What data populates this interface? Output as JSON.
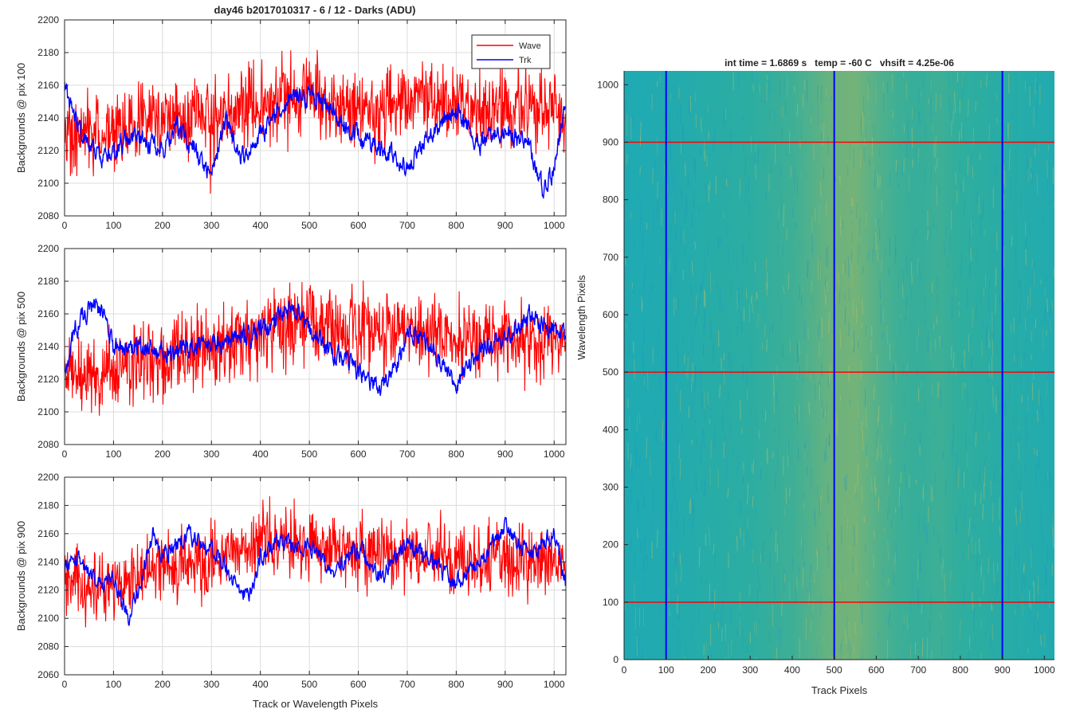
{
  "figure": {
    "title": "day46 b2017010317 - 6 / 12 - Darks (ADU)",
    "colors": {
      "wave": "#ff0000",
      "trk": "#0000ff",
      "axis": "#262626",
      "grid": "#dcdcdc"
    }
  },
  "chart_data": [
    {
      "type": "line",
      "ylabel": "Backgrounds @ pix 100",
      "xlabel": "",
      "xlim": [
        0,
        1024
      ],
      "ylim": [
        2080,
        2200
      ],
      "xticks": [
        0,
        100,
        200,
        300,
        400,
        500,
        600,
        700,
        800,
        900,
        1000
      ],
      "yticks": [
        2080,
        2100,
        2120,
        2140,
        2160,
        2180,
        2200
      ],
      "grid": true,
      "legend": {
        "placement": "top-right",
        "entries": [
          "Wave",
          "Trk"
        ]
      },
      "series": [
        {
          "name": "Wave",
          "color": "#ff0000",
          "x": [
            0,
            50,
            100,
            150,
            200,
            250,
            300,
            350,
            400,
            450,
            500,
            550,
            600,
            650,
            700,
            750,
            800,
            850,
            900,
            950,
            1000,
            1023
          ],
          "values": [
            2130,
            2132,
            2130,
            2138,
            2140,
            2140,
            2142,
            2143,
            2148,
            2150,
            2156,
            2150,
            2146,
            2145,
            2150,
            2148,
            2147,
            2145,
            2148,
            2147,
            2144,
            2140
          ]
        },
        {
          "name": "Trk",
          "color": "#0000ff",
          "x": [
            0,
            20,
            40,
            60,
            80,
            100,
            120,
            150,
            200,
            230,
            260,
            300,
            330,
            360,
            400,
            450,
            500,
            550,
            600,
            650,
            700,
            750,
            800,
            850,
            900,
            950,
            980,
            1000,
            1023
          ],
          "values": [
            2160,
            2140,
            2130,
            2120,
            2115,
            2118,
            2125,
            2130,
            2120,
            2135,
            2125,
            2105,
            2140,
            2115,
            2130,
            2150,
            2155,
            2145,
            2130,
            2120,
            2110,
            2130,
            2145,
            2125,
            2135,
            2120,
            2095,
            2110,
            2150
          ]
        }
      ]
    },
    {
      "type": "line",
      "ylabel": "Backgrounds @ pix 500",
      "xlabel": "",
      "xlim": [
        0,
        1024
      ],
      "ylim": [
        2080,
        2200
      ],
      "xticks": [
        0,
        100,
        200,
        300,
        400,
        500,
        600,
        700,
        800,
        900,
        1000
      ],
      "yticks": [
        2080,
        2100,
        2120,
        2140,
        2160,
        2180,
        2200
      ],
      "grid": true,
      "series": [
        {
          "name": "Wave",
          "color": "#ff0000",
          "x": [
            0,
            50,
            100,
            150,
            200,
            250,
            300,
            350,
            400,
            450,
            500,
            550,
            600,
            650,
            700,
            750,
            800,
            850,
            900,
            950,
            1000,
            1023
          ],
          "values": [
            2120,
            2128,
            2125,
            2130,
            2133,
            2135,
            2140,
            2145,
            2148,
            2152,
            2153,
            2150,
            2148,
            2148,
            2150,
            2147,
            2145,
            2144,
            2145,
            2144,
            2143,
            2142
          ]
        },
        {
          "name": "Trk",
          "color": "#0000ff",
          "x": [
            0,
            20,
            40,
            60,
            80,
            100,
            130,
            160,
            200,
            250,
            300,
            350,
            400,
            450,
            480,
            500,
            550,
            600,
            650,
            680,
            700,
            750,
            800,
            850,
            900,
            950,
            1000,
            1023
          ],
          "values": [
            2125,
            2150,
            2160,
            2167,
            2160,
            2140,
            2138,
            2140,
            2135,
            2140,
            2140,
            2145,
            2150,
            2160,
            2158,
            2150,
            2135,
            2125,
            2115,
            2130,
            2150,
            2140,
            2115,
            2140,
            2145,
            2160,
            2150,
            2145
          ]
        }
      ]
    },
    {
      "type": "line",
      "ylabel": "Backgrounds @ pix 900",
      "xlabel": "Track or Wavelength Pixels",
      "xlim": [
        0,
        1024
      ],
      "ylim": [
        2060,
        2200
      ],
      "xticks": [
        0,
        100,
        200,
        300,
        400,
        500,
        600,
        700,
        800,
        900,
        1000
      ],
      "yticks": [
        2060,
        2080,
        2100,
        2120,
        2140,
        2160,
        2180,
        2200
      ],
      "grid": true,
      "series": [
        {
          "name": "Wave",
          "color": "#ff0000",
          "x": [
            0,
            50,
            100,
            150,
            200,
            250,
            300,
            350,
            400,
            450,
            500,
            550,
            600,
            650,
            700,
            750,
            800,
            850,
            900,
            950,
            1000,
            1023
          ],
          "values": [
            2125,
            2122,
            2120,
            2128,
            2135,
            2140,
            2143,
            2148,
            2152,
            2155,
            2155,
            2150,
            2148,
            2145,
            2148,
            2145,
            2140,
            2140,
            2142,
            2140,
            2138,
            2135
          ]
        },
        {
          "name": "Trk",
          "color": "#0000ff",
          "x": [
            0,
            20,
            50,
            80,
            100,
            130,
            150,
            180,
            200,
            250,
            300,
            350,
            380,
            400,
            450,
            500,
            550,
            600,
            650,
            700,
            750,
            800,
            850,
            900,
            950,
            1000,
            1023
          ],
          "values": [
            2135,
            2145,
            2130,
            2125,
            2130,
            2100,
            2120,
            2160,
            2145,
            2160,
            2150,
            2125,
            2115,
            2145,
            2155,
            2150,
            2135,
            2150,
            2130,
            2155,
            2140,
            2125,
            2140,
            2165,
            2145,
            2160,
            2125
          ]
        }
      ]
    },
    {
      "type": "heatmap",
      "title": "int time = 1.6869 s   temp = -60 C   vhsift = 4.25e-06",
      "xlabel": "Track Pixels",
      "ylabel": "Wavelength Pixels",
      "xlim": [
        0,
        1024
      ],
      "ylim": [
        0,
        1024
      ],
      "xticks": [
        0,
        100,
        200,
        300,
        400,
        500,
        600,
        700,
        800,
        900,
        1000
      ],
      "yticks": [
        0,
        100,
        200,
        300,
        400,
        500,
        600,
        700,
        800,
        900,
        1000
      ],
      "colormap": {
        "low": "#0ea5c8",
        "mid": "#2fae9e",
        "high": "#c9b94a"
      },
      "brightness_by_track_pixel": {
        "x": [
          0,
          100,
          200,
          300,
          400,
          450,
          500,
          550,
          600,
          650,
          700,
          750,
          800,
          850,
          900,
          1000,
          1024
        ],
        "level": [
          0.25,
          0.3,
          0.38,
          0.45,
          0.55,
          0.62,
          0.7,
          0.72,
          0.62,
          0.55,
          0.52,
          0.55,
          0.5,
          0.45,
          0.4,
          0.32,
          0.3
        ]
      },
      "markers": {
        "vertical_lines": {
          "x": [
            100,
            500,
            900
          ],
          "color": "#0000ff"
        },
        "horizontal_lines": {
          "y": [
            100,
            500,
            900
          ],
          "color": "#ff0000"
        }
      }
    }
  ]
}
